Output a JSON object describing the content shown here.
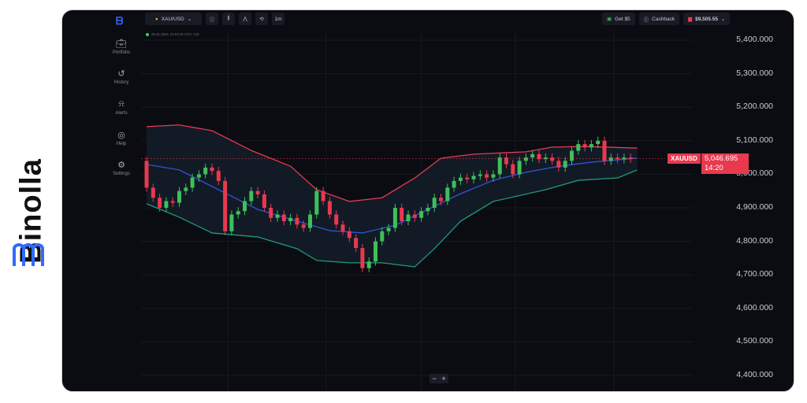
{
  "brand": {
    "name": "Binolla",
    "color": "#2f6bff"
  },
  "sidebar": {
    "items": [
      {
        "label": "Portfolio",
        "icon": "briefcase-icon"
      },
      {
        "label": "History",
        "icon": "history-icon"
      },
      {
        "label": "Alerts",
        "icon": "bell-icon"
      },
      {
        "label": "Help",
        "icon": "lifebuoy-icon"
      },
      {
        "label": "Settings",
        "icon": "gear-icon"
      }
    ]
  },
  "toolbar": {
    "asset": "XAU/USD",
    "timeframe": "1m",
    "get_bonus": "Get $5",
    "cashback": "Cashback",
    "balance": "$9,505.55"
  },
  "timestamp": "25.11.2021  21:04:31  UTC +10",
  "price_axis": [
    "5,400.000",
    "5,300.000",
    "5,200.000",
    "5,100.000",
    "5,000.000",
    "4,900.000",
    "4,800.000",
    "4,700.000",
    "4,600.000",
    "4,500.000",
    "4,400.000"
  ],
  "current": {
    "symbol": "XAUUSD",
    "price": "5,046.695",
    "timer": "14:20",
    "color": "#e8394f"
  },
  "zoom": {
    "minus": "−",
    "plus": "+"
  },
  "colors": {
    "up": "#3fbf5a",
    "down": "#e8394f",
    "upper_band": "#e8394f",
    "middle_band": "#2f55d4",
    "lower_band": "#1f9a78"
  },
  "chart_data": {
    "type": "candlestick",
    "ylim": [
      4400,
      5400
    ],
    "first_open": 5040,
    "closes": [
      4960,
      4930,
      4900,
      4920,
      4915,
      4950,
      4960,
      4990,
      5000,
      5020,
      5010,
      4980,
      4830,
      4880,
      4890,
      4920,
      4950,
      4940,
      4900,
      4870,
      4880,
      4860,
      4870,
      4850,
      4840,
      4880,
      4950,
      4920,
      4880,
      4850,
      4830,
      4810,
      4780,
      4720,
      4740,
      4800,
      4830,
      4840,
      4900,
      4860,
      4880,
      4870,
      4890,
      4900,
      4930,
      4920,
      4960,
      4980,
      4990,
      4985,
      4995,
      5000,
      4990,
      5000,
      5050,
      5030,
      5000,
      5040,
      5050,
      5060,
      5045,
      5050,
      5040,
      5020,
      5040,
      5070,
      5090,
      5080,
      5090,
      5100,
      5040,
      5050,
      5045,
      5050,
      5046
    ],
    "bands": {
      "upper": [
        [
          0,
          5142
        ],
        [
          5,
          5147
        ],
        [
          10,
          5130
        ],
        [
          16,
          5071
        ],
        [
          22,
          5024
        ],
        [
          26,
          4954
        ],
        [
          31,
          4919
        ],
        [
          36,
          4930
        ],
        [
          41,
          4989
        ],
        [
          45,
          5048
        ],
        [
          50,
          5060
        ],
        [
          58,
          5067
        ],
        [
          62,
          5081
        ],
        [
          67,
          5083
        ],
        [
          75,
          5078
        ]
      ],
      "middle": [
        [
          0,
          5029
        ],
        [
          5,
          5013
        ],
        [
          11,
          4954
        ],
        [
          17,
          4895
        ],
        [
          23,
          4860
        ],
        [
          28,
          4832
        ],
        [
          33,
          4825
        ],
        [
          38,
          4848
        ],
        [
          43,
          4895
        ],
        [
          48,
          4942
        ],
        [
          53,
          4982
        ],
        [
          58,
          5006
        ],
        [
          63,
          5024
        ],
        [
          68,
          5036
        ],
        [
          75,
          5048
        ]
      ],
      "lower": [
        [
          0,
          4912
        ],
        [
          5,
          4872
        ],
        [
          10,
          4825
        ],
        [
          17,
          4813
        ],
        [
          23,
          4778
        ],
        [
          26,
          4743
        ],
        [
          31,
          4736
        ],
        [
          36,
          4736
        ],
        [
          41,
          4724
        ],
        [
          44,
          4778
        ],
        [
          48,
          4860
        ],
        [
          53,
          4919
        ],
        [
          61,
          4954
        ],
        [
          66,
          4982
        ],
        [
          72,
          4989
        ],
        [
          75,
          5013
        ]
      ]
    }
  }
}
